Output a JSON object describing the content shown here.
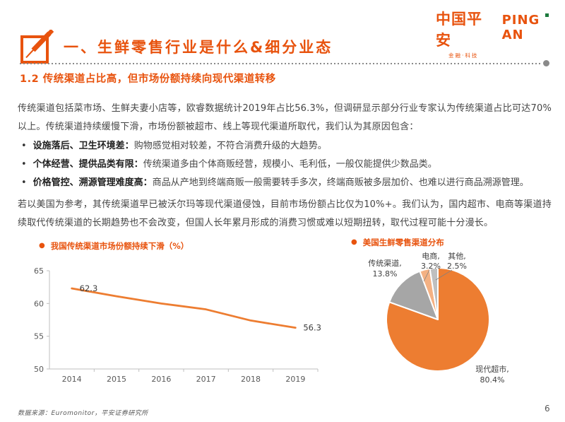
{
  "header": {
    "logo": {
      "cn": "中国平安",
      "en": "PING AN",
      "sub": "金融·科技"
    },
    "section_title": "一、生鲜零售行业是什么&细分业态",
    "subtitle": "1.2 传统渠道占比高，但市场份额持续向现代渠道转移"
  },
  "body": {
    "para1": "传统渠道包括菜市场、生鲜夫妻小店等，欧睿数据统计2019年占比56.3%，但调研显示部分行业专家认为传统渠道占比可达70%以上。传统渠道持续缓慢下滑，市场份额被超市、线上等现代渠道所取代，我们认为其原因包含：",
    "bullets": [
      {
        "lead": "设施落后、卫生环境差：",
        "text": "购物感觉相对较差，不符合消费升级的大趋势。"
      },
      {
        "lead": "个体经营、提供品类有限：",
        "text": "传统渠道多由个体商贩经营，规模小、毛利低，一般仅能提供少数品类。"
      },
      {
        "lead": "价格管控、溯源管理难度高：",
        "text": "商品从产地到终端商贩一般需要转手多次，终端商贩被多层加价、也难以进行商品溯源管理。"
      }
    ],
    "para2": "若以美国为参考，其传统渠道早已被沃尔玛等现代渠道侵蚀，目前市场份额占比仅为10%+。我们认为，国内超市、电商等渠道持续取代传统渠道的长期趋势也不会改变，但国人长年累月形成的消费习惯或难以短期扭转，取代过程可能十分漫长。"
  },
  "ui": {
    "chart_marker": "●",
    "bullet": "•"
  },
  "colors": {
    "accent": "#E8530E",
    "chart_orange": "#ED7D31",
    "axis_gray": "#BFBFBF",
    "label_gray": "#595959",
    "green_accent": "#1C7A3D"
  },
  "chart_data": [
    {
      "type": "line",
      "title": "我国传统渠道市场份额持续下滑（%）",
      "categories": [
        "2014",
        "2015",
        "2016",
        "2017",
        "2018",
        "2019"
      ],
      "values": [
        62.3,
        61.1,
        60.0,
        59.1,
        57.4,
        56.3
      ],
      "ylim": [
        50,
        65
      ],
      "yticks": [
        50,
        55,
        60,
        65
      ],
      "point_labels": {
        "first": "62.3",
        "last": "56.3"
      },
      "line_color": "#ED7D31",
      "grid": false,
      "legend": "none",
      "xlabel": "",
      "ylabel": ""
    },
    {
      "type": "pie",
      "title": "美国生鲜零售渠道分布",
      "slices": [
        {
          "label": "现代超市",
          "value": 80.4,
          "color": "#ED7D31"
        },
        {
          "label": "传统渠道",
          "value": 13.8,
          "color": "#A6A6A6"
        },
        {
          "label": "电商",
          "value": 3.2,
          "color": "#F4B183"
        },
        {
          "label": "其他",
          "value": 2.5,
          "color": "#BFBFBF"
        }
      ],
      "legend": "none",
      "start_angle_deg": 0,
      "direction": "clockwise"
    }
  ],
  "footer": {
    "source": "数据来源：Euromonitor，平安证券研究所",
    "page": "6"
  }
}
